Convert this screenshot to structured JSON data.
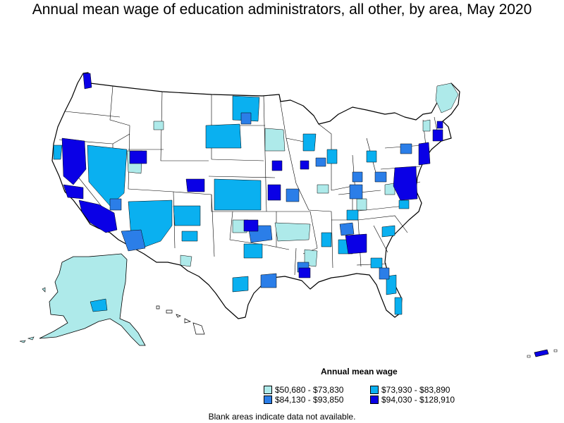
{
  "title": "Annual mean wage of education administrators, all other, by area, May 2020",
  "legend": {
    "title": "Annual mean wage",
    "items": [
      {
        "label": "$50,680 - $73,830",
        "color": "#aeeaea"
      },
      {
        "label": "$84,130 - $93,850",
        "color": "#2b7ee8"
      },
      {
        "label": "$73,930 - $83,890",
        "color": "#0ab0f0"
      },
      {
        "label": "$94,030 - $128,910",
        "color": "#0a00e6"
      }
    ]
  },
  "note": "Blank areas indicate data not available.",
  "colors": {
    "background": "#ffffff",
    "border": "#000000",
    "no_data": "#ffffff"
  }
}
